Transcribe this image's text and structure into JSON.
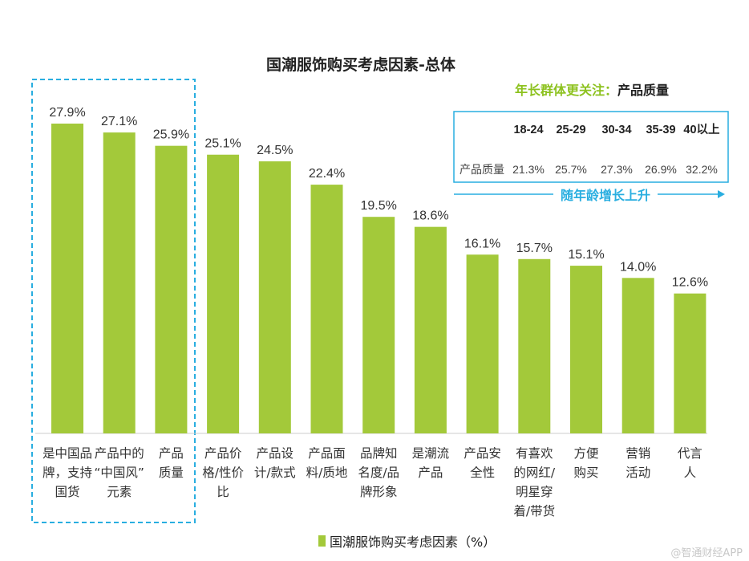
{
  "chart_data": {
    "type": "bar",
    "title": "国潮服饰购买考虑因素-总体",
    "categories": [
      [
        "是中国品",
        "牌，支持",
        "国货"
      ],
      [
        "产品中的",
        "“中国风”",
        "元素"
      ],
      [
        "产品",
        "质量"
      ],
      [
        "产品价",
        "格/性价",
        "比"
      ],
      [
        "产品设",
        "计/款式"
      ],
      [
        "产品面",
        "料/质地"
      ],
      [
        "品牌知",
        "名度/品",
        "牌形象"
      ],
      [
        "是潮流",
        "产品"
      ],
      [
        "产品安",
        "全性"
      ],
      [
        "有喜欢",
        "的网红/",
        "明星穿",
        "着/带货"
      ],
      [
        "方便",
        "购买"
      ],
      [
        "营销",
        "活动"
      ],
      [
        "代言",
        "人"
      ]
    ],
    "values": [
      27.9,
      27.1,
      25.9,
      25.1,
      24.5,
      22.4,
      19.5,
      18.6,
      16.1,
      15.7,
      15.1,
      14.0,
      12.6
    ],
    "value_labels": [
      "27.9%",
      "27.1%",
      "25.9%",
      "25.1%",
      "24.5%",
      "22.4%",
      "19.5%",
      "18.6%",
      "16.1%",
      "15.7%",
      "15.1%",
      "14.0%",
      "12.6%"
    ],
    "ylim": [
      0,
      30
    ],
    "legend": "国潮服饰购买考虑因素（%）",
    "legend_position": "bottom",
    "bar_color": "#a3c93a",
    "highlight_color": "#29aee0",
    "highlight_indices": [
      0,
      1,
      2
    ],
    "grid": false
  },
  "annotation": {
    "title_prefix": "年长群体更关注：",
    "title_strong": "产品质量",
    "row_label": "产品质量",
    "age_groups": [
      "18-24",
      "25-29",
      "30-34",
      "35-39",
      "40以上"
    ],
    "values": [
      "21.3%",
      "25.7%",
      "27.3%",
      "26.9%",
      "32.2%"
    ],
    "trend_label": "随年龄增长上升"
  },
  "watermark": "@智通财经APP"
}
